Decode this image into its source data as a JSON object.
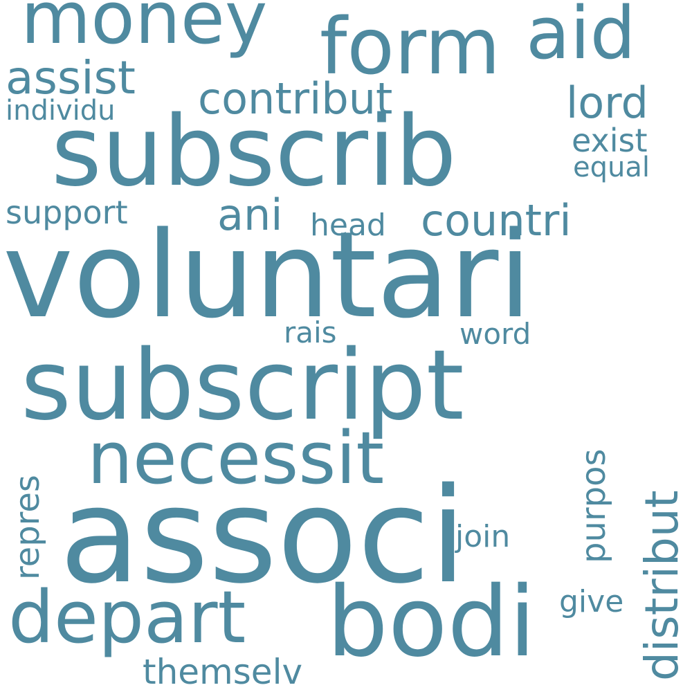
{
  "color": "#4f8aa0",
  "words": {
    "money": "money",
    "form": "form",
    "aid": "aid",
    "assist": "assist",
    "contribut": "contribut",
    "lord": "lord",
    "individu": "individu",
    "subscrib": "subscrib",
    "exist": "exist",
    "equal": "equal",
    "support": "support",
    "ani": "ani",
    "head": "head",
    "countri": "countri",
    "voluntari": "voluntari",
    "rais": "rais",
    "word": "word",
    "subscript": "subscript",
    "necessit": "necessit",
    "distribut": "distribut",
    "repres": "repres",
    "purpos": "purpos",
    "associ": "associ",
    "join": "join",
    "depart": "depart",
    "bodi": "bodi",
    "give": "give",
    "themselv": "themselv"
  }
}
